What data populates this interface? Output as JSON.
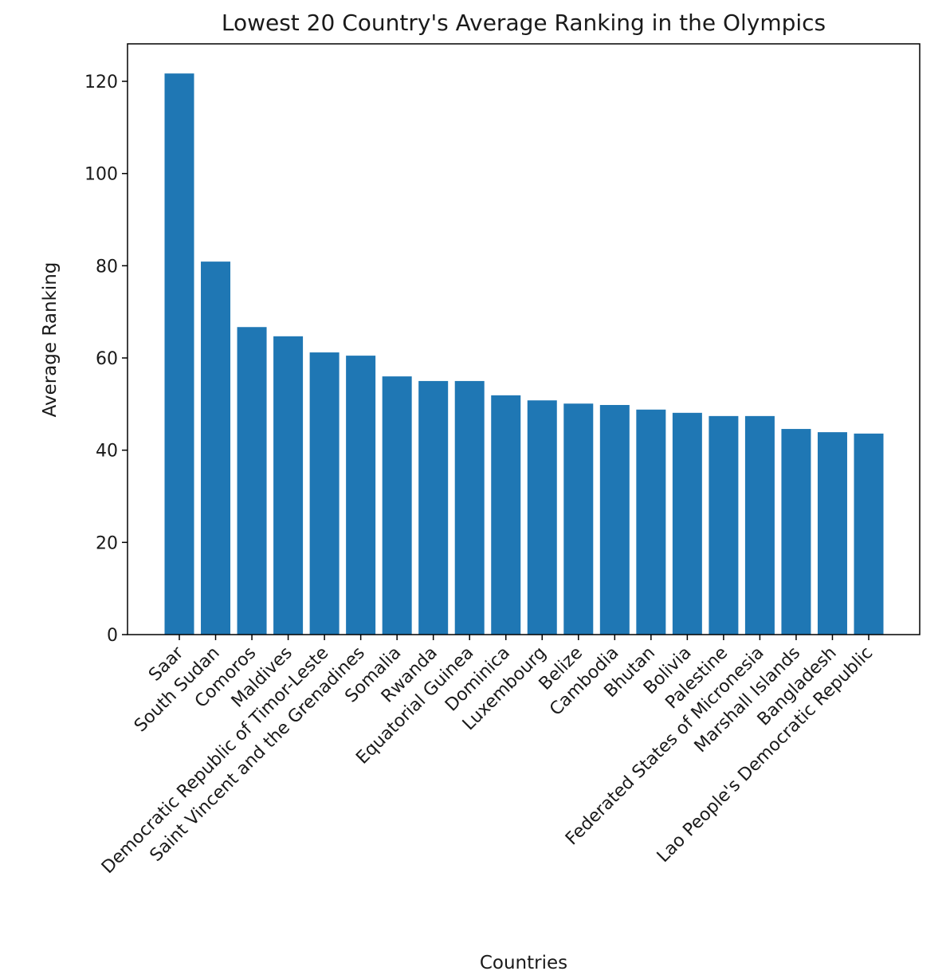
{
  "chart_data": {
    "type": "bar",
    "title": "Lowest 20 Country's Average Ranking in the Olympics",
    "xlabel": "Countries",
    "ylabel": "Average Ranking",
    "ylim": [
      0,
      128
    ],
    "yticks": [
      0,
      20,
      40,
      60,
      80,
      100,
      120
    ],
    "grid": false,
    "bar_color": "#1f77b4",
    "categories": [
      "Saar",
      "South Sudan",
      "Comoros",
      "Maldives",
      "Democratic Republic of Timor-Leste",
      "Saint Vincent and the Grenadines",
      "Somalia",
      "Rwanda",
      "Equatorial Guinea",
      "Dominica",
      "Luxembourg",
      "Belize",
      "Cambodia",
      "Bhutan",
      "Bolivia",
      "Palestine",
      "Federated States of Micronesia",
      "Marshall Islands",
      "Bangladesh",
      "Lao People's Democratic Republic"
    ],
    "values": [
      121.7,
      80.9,
      66.7,
      64.7,
      61.2,
      60.5,
      56.0,
      55.0,
      55.0,
      51.9,
      50.8,
      50.1,
      49.8,
      48.8,
      48.1,
      47.4,
      47.4,
      44.6,
      43.9,
      43.6
    ]
  }
}
